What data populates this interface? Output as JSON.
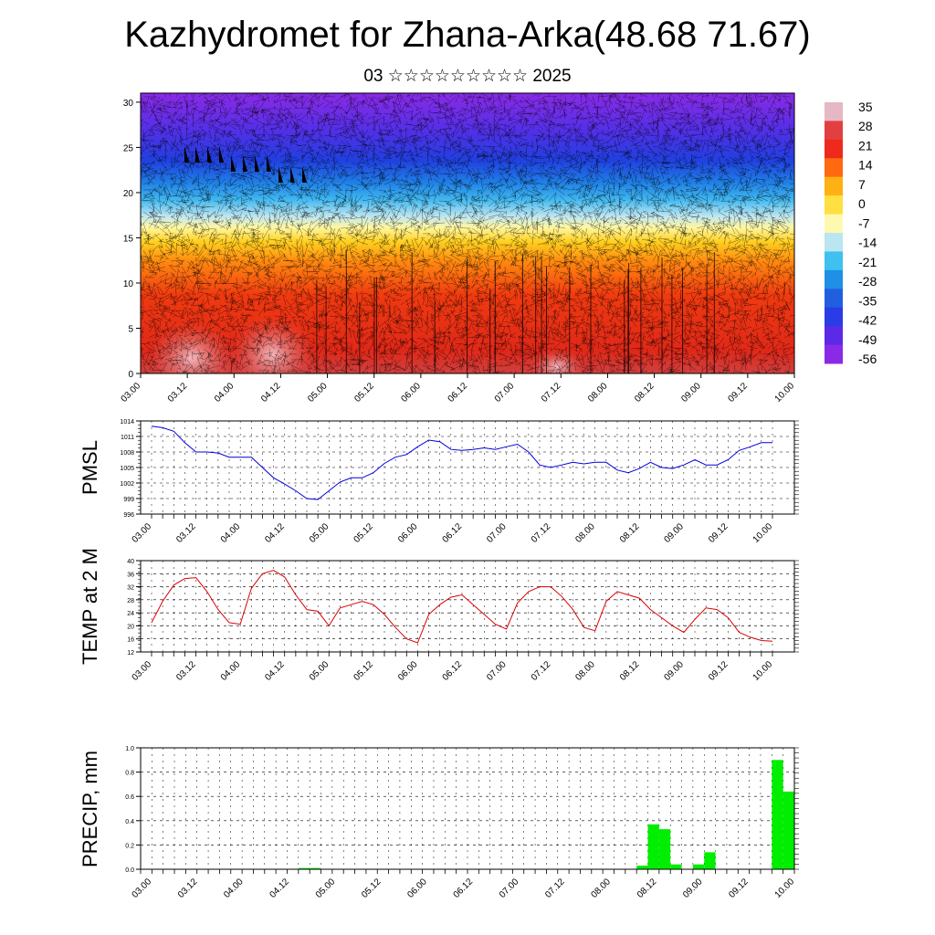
{
  "title": "Kazhydromet for Zhana-Arka(48.68 71.67)",
  "subtitle": "03 ☆☆☆☆☆☆☆☆☆ 2025",
  "colors": {
    "pmsl_line": "#0000dd",
    "temp_line": "#dd0000",
    "precip_bar": "#00ee00",
    "colorbar": [
      "#e6b8c4",
      "#e24040",
      "#ee2a1c",
      "#ff6a10",
      "#ffb014",
      "#ffe040",
      "#fff9b0",
      "#b9e6f0",
      "#40c0f0",
      "#2090e6",
      "#2060e0",
      "#2a3ce6",
      "#5a2ae6",
      "#8a2ae6"
    ]
  },
  "chart_data": [
    {
      "type": "heatmap",
      "name": "cross-section",
      "x_ticks": [
        "03.00",
        "03.12",
        "04.00",
        "04.12",
        "05.00",
        "05.12",
        "06.00",
        "06.12",
        "07.00",
        "07.12",
        "08.00",
        "08.12",
        "09.00",
        "09.12",
        "10.00"
      ],
      "y_ticks": [
        "0",
        "5",
        "10",
        "15",
        "20",
        "25",
        "30"
      ],
      "ylim": [
        0,
        31
      ],
      "colorbar_labels": [
        "35",
        "28",
        "21",
        "14",
        "7",
        "0",
        "-7",
        "-14",
        "-21",
        "-28",
        "-35",
        "-42",
        "-49",
        "-56"
      ],
      "grid": false
    },
    {
      "type": "line",
      "ylabel": "PMSL",
      "ylim": [
        996,
        1014
      ],
      "y_ticks": [
        "1014",
        "1011",
        "1008",
        "1005",
        "1002",
        "999",
        "996"
      ],
      "x_ticks": [
        "03.00",
        "03.12",
        "04.00",
        "04.12",
        "05.00",
        "05.12",
        "06.00",
        "06.12",
        "07.00",
        "07.12",
        "08.00",
        "08.12",
        "09.00",
        "09.12",
        "10.00"
      ],
      "values": [
        1013.0,
        1012.7,
        1012.0,
        1009.8,
        1008.0,
        1008.0,
        1007.8,
        1007.0,
        1007.0,
        1007.0,
        1005.0,
        1003.0,
        1001.8,
        1000.5,
        999.0,
        998.8,
        1000.5,
        1002.2,
        1003.0,
        1003.0,
        1004.0,
        1005.8,
        1007.0,
        1007.5,
        1009.0,
        1010.3,
        1010.0,
        1008.5,
        1008.3,
        1008.5,
        1008.8,
        1008.5,
        1009.0,
        1009.5,
        1008.0,
        1005.5,
        1005.0,
        1005.5,
        1006.0,
        1005.7,
        1006.0,
        1006.0,
        1004.5,
        1004.0,
        1004.8,
        1006.0,
        1005.0,
        1004.8,
        1005.5,
        1006.5,
        1005.5,
        1005.5,
        1006.5,
        1008.3,
        1009.0,
        1009.8,
        1009.8
      ],
      "grid": true
    },
    {
      "type": "line",
      "ylabel": "TEMP at 2 M",
      "ylim": [
        12,
        40
      ],
      "y_ticks": [
        "40",
        "36",
        "32",
        "28",
        "24",
        "20",
        "16",
        "12"
      ],
      "x_ticks": [
        "03.00",
        "03.12",
        "04.00",
        "04.12",
        "05.00",
        "05.12",
        "06.00",
        "06.12",
        "07.00",
        "07.12",
        "08.00",
        "08.12",
        "09.00",
        "09.12",
        "10.00"
      ],
      "values": [
        21.0,
        27.5,
        32.5,
        34.5,
        34.8,
        30.5,
        25.0,
        21.0,
        20.5,
        31.5,
        36.0,
        37.0,
        35.0,
        29.5,
        25.0,
        24.5,
        20.0,
        25.5,
        26.5,
        27.5,
        26.5,
        23.5,
        19.5,
        16.0,
        14.8,
        23.5,
        26.5,
        28.8,
        29.5,
        26.5,
        23.5,
        20.5,
        19.0,
        27.0,
        30.5,
        32.0,
        32.0,
        29.0,
        25.0,
        19.5,
        18.5,
        27.5,
        30.5,
        29.5,
        28.5,
        25.0,
        22.5,
        20.0,
        18.0,
        22.0,
        25.5,
        25.0,
        22.5,
        18.0,
        16.5,
        15.5,
        15.3
      ],
      "grid": true
    },
    {
      "type": "bar",
      "ylabel": "PRECIP, mm",
      "ylim": [
        0.0,
        1.0
      ],
      "y_ticks": [
        "1.0",
        "0.8",
        "0.6",
        "0.4",
        "0.2",
        "0.0"
      ],
      "x_ticks": [
        "03.00",
        "03.12",
        "04.00",
        "04.12",
        "05.00",
        "05.12",
        "06.00",
        "06.12",
        "07.00",
        "07.12",
        "08.00",
        "08.12",
        "09.00",
        "09.12",
        "10.00"
      ],
      "values": [
        0,
        0,
        0,
        0,
        0,
        0,
        0,
        0,
        0,
        0,
        0,
        0,
        0,
        0,
        0.01,
        0.01,
        0,
        0,
        0,
        0,
        0,
        0,
        0,
        0,
        0,
        0,
        0,
        0,
        0,
        0,
        0,
        0,
        0,
        0,
        0,
        0,
        0,
        0,
        0,
        0,
        0,
        0,
        0,
        0,
        0.03,
        0.37,
        0.33,
        0.04,
        0,
        0.04,
        0.14,
        0,
        0,
        0,
        0,
        0,
        0.9,
        0.64
      ],
      "grid": true
    }
  ]
}
